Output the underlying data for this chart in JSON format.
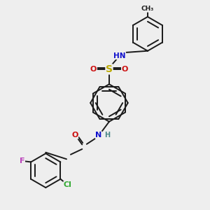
{
  "bg_color": "#eeeeee",
  "bond_color": "#1a1a1a",
  "bond_width": 1.4,
  "atom_colors": {
    "C": "#1a1a1a",
    "H": "#4a8888",
    "N": "#1010cc",
    "O": "#cc1010",
    "S": "#bbaa00",
    "F": "#bb44bb",
    "Cl": "#33aa33"
  }
}
